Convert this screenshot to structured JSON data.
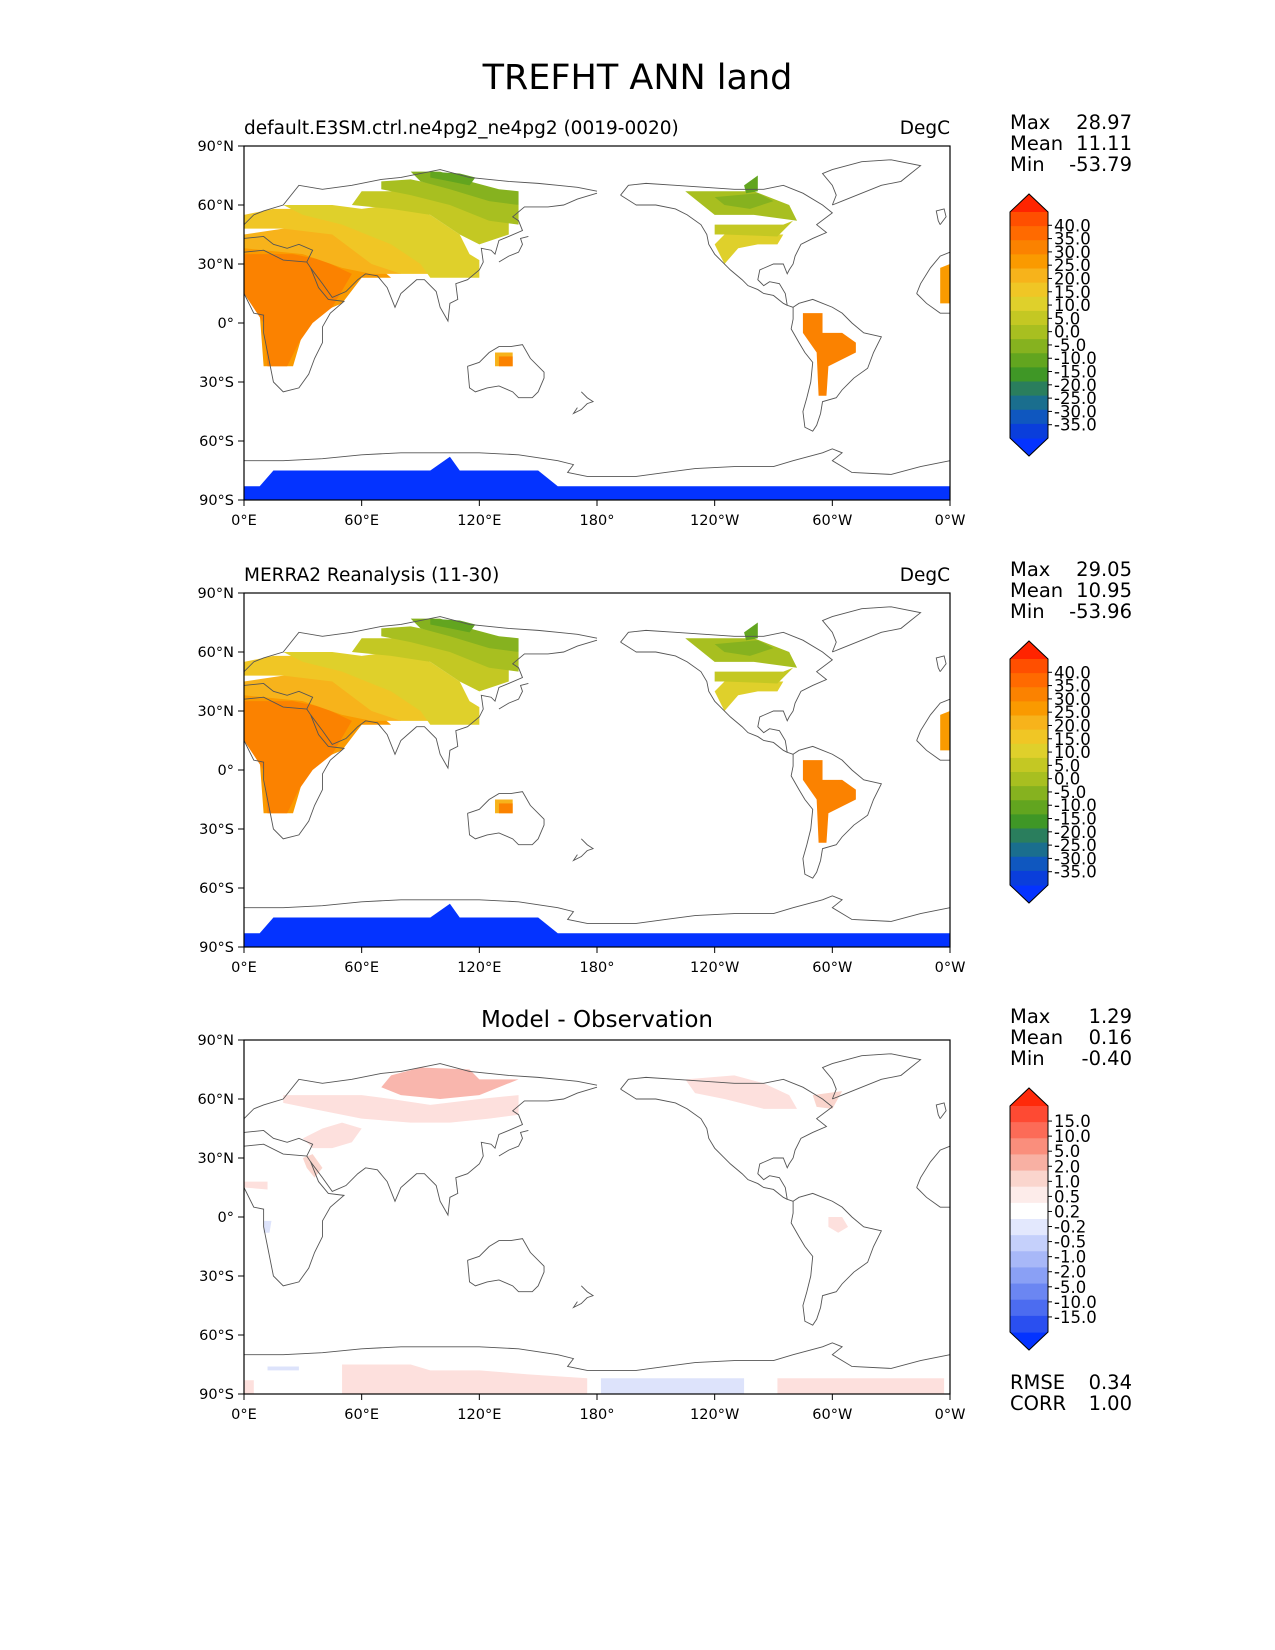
{
  "figure_title": "TREFHT ANN land",
  "colors": {
    "land_outline": "#555555",
    "frame": "#000000",
    "antarctica": "#0433ff",
    "diff_positive_light": "#fde0dd",
    "diff_positive_mid": "#fcbba1",
    "diff_positive_strong": "#f4a09a",
    "diff_negative_light": "#dde3fb"
  },
  "axis_ticks": {
    "x": [
      "0°E",
      "60°E",
      "120°E",
      "180°",
      "120°W",
      "60°W",
      "0°W"
    ],
    "y": [
      "90°N",
      "60°N",
      "30°N",
      "0°",
      "30°S",
      "60°S",
      "90°S"
    ]
  },
  "panels": [
    {
      "id": "model",
      "title_left": "default.E3SM.ctrl.ne4pg2_ne4pg2 (0019-0020)",
      "title_right": "DegC",
      "title_center": "",
      "stats": [
        {
          "label": "Max",
          "value": "28.97"
        },
        {
          "label": "Mean",
          "value": "11.11"
        },
        {
          "label": "Min",
          "value": "-53.79"
        }
      ],
      "colorbar": {
        "labels": [
          "40.0",
          "35.0",
          "30.0",
          "25.0",
          "20.0",
          "15.0",
          "10.0",
          "5.0",
          "0.0",
          "-5.0",
          "-10.0",
          "-15.0",
          "-20.0",
          "-25.0",
          "-30.0",
          "-35.0"
        ],
        "colors": [
          "#ff2400",
          "#ff4f00",
          "#ff6a00",
          "#fb8200",
          "#fa9a00",
          "#f7b31b",
          "#f0c625",
          "#dfd02b",
          "#c4c823",
          "#a8bf20",
          "#86b21f",
          "#62a51f",
          "#3f9726",
          "#2a7e5d",
          "#1a6e8e",
          "#0f57bf",
          "#0a3edb",
          "#0433ff"
        ],
        "extend_top_color": "#ff2400",
        "extend_bottom_color": "#0433ff"
      },
      "footer_stats": []
    },
    {
      "id": "obs",
      "title_left": "MERRA2 Reanalysis (11-30)",
      "title_right": "DegC",
      "title_center": "",
      "stats": [
        {
          "label": "Max",
          "value": "29.05"
        },
        {
          "label": "Mean",
          "value": "10.95"
        },
        {
          "label": "Min",
          "value": "-53.96"
        }
      ],
      "colorbar": {
        "labels": [
          "40.0",
          "35.0",
          "30.0",
          "25.0",
          "20.0",
          "15.0",
          "10.0",
          "5.0",
          "0.0",
          "-5.0",
          "-10.0",
          "-15.0",
          "-20.0",
          "-25.0",
          "-30.0",
          "-35.0"
        ],
        "colors": [
          "#ff2400",
          "#ff4f00",
          "#ff6a00",
          "#fb8200",
          "#fa9a00",
          "#f7b31b",
          "#f0c625",
          "#dfd02b",
          "#c4c823",
          "#a8bf20",
          "#86b21f",
          "#62a51f",
          "#3f9726",
          "#2a7e5d",
          "#1a6e8e",
          "#0f57bf",
          "#0a3edb",
          "#0433ff"
        ],
        "extend_top_color": "#ff2400",
        "extend_bottom_color": "#0433ff"
      },
      "footer_stats": []
    },
    {
      "id": "diff",
      "title_left": "",
      "title_right": "",
      "title_center": "Model - Observation",
      "stats": [
        {
          "label": "Max",
          "value": "1.29"
        },
        {
          "label": "Mean",
          "value": "0.16"
        },
        {
          "label": "Min",
          "value": "-0.40"
        }
      ],
      "colorbar": {
        "labels": [
          "15.0",
          "10.0",
          "5.0",
          "2.0",
          "1.0",
          "0.5",
          "0.2",
          "-0.2",
          "-0.5",
          "-1.0",
          "-2.0",
          "-5.0",
          "-10.0",
          "-15.0"
        ],
        "colors": [
          "#ff2a0a",
          "#fe4a33",
          "#fc6b57",
          "#fa8e7c",
          "#f8b0a3",
          "#fad5cd",
          "#fdecea",
          "#ffffff",
          "#e3e8fd",
          "#c5d0fb",
          "#a8b8f8",
          "#8aa0f5",
          "#6b86f2",
          "#4c6cf0",
          "#2a4ff0",
          "#0433ff"
        ],
        "extend_top_color": "#ff2a0a",
        "extend_bottom_color": "#0433ff"
      },
      "footer_stats": [
        {
          "label": "RMSE",
          "value": "0.34"
        },
        {
          "label": "CORR",
          "value": "1.00"
        }
      ]
    }
  ]
}
